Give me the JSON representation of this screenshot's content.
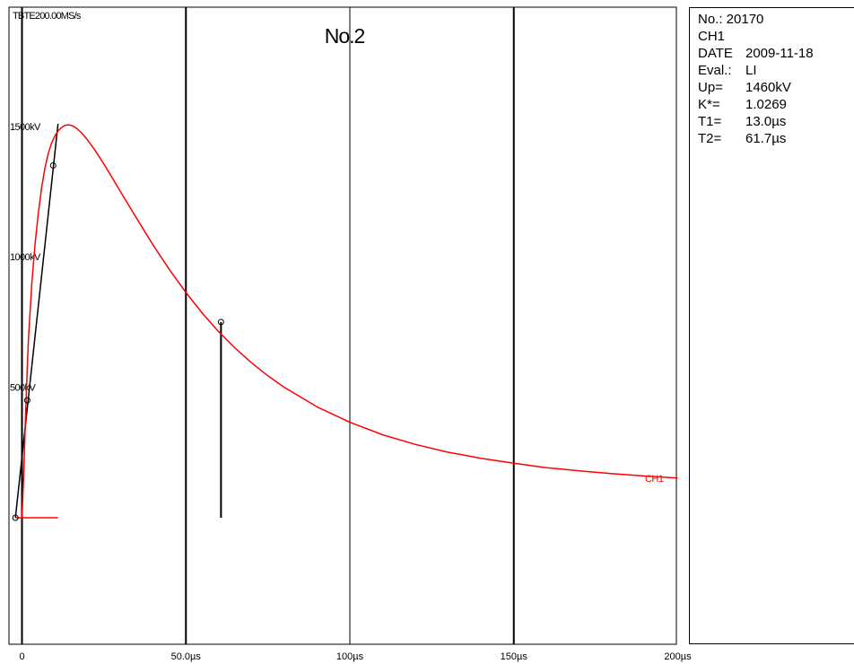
{
  "chart_data": {
    "type": "line",
    "title": "No.2",
    "header_label": "TBTE200.00MS/s",
    "xlabel": "",
    "ylabel": "",
    "x_unit": "µs",
    "y_unit": "kV",
    "xlim": [
      -2,
      200
    ],
    "ylim": [
      -500,
      1950
    ],
    "x_ticks": [
      {
        "value": 0,
        "label": "0"
      },
      {
        "value": 50,
        "label": "50.0µs"
      },
      {
        "value": 100,
        "label": "100µs"
      },
      {
        "value": 150,
        "label": "150µs"
      },
      {
        "value": 200,
        "label": "200µs"
      }
    ],
    "y_ticks": [
      {
        "value": 500,
        "label": "500kV"
      },
      {
        "value": 1000,
        "label": "1000kV"
      },
      {
        "value": 1500,
        "label": "1500kV"
      }
    ],
    "series": [
      {
        "name": "CH1",
        "color": "#ff0000",
        "x": [
          0,
          0.5,
          1,
          1.5,
          2,
          3,
          4,
          5,
          6,
          7,
          8,
          9,
          10,
          11,
          12,
          13,
          14,
          15,
          16,
          17,
          18,
          19,
          20,
          22,
          24,
          26,
          28,
          30,
          35,
          40,
          45,
          50,
          55,
          60,
          65,
          70,
          75,
          80,
          90,
          100,
          110,
          120,
          130,
          140,
          150,
          160,
          170,
          180,
          190,
          200
        ],
        "y": [
          0,
          150,
          360,
          540,
          690,
          900,
          1050,
          1170,
          1265,
          1340,
          1395,
          1435,
          1462,
          1482,
          1495,
          1503,
          1506,
          1504,
          1498,
          1489,
          1477,
          1463,
          1448,
          1413,
          1375,
          1335,
          1293,
          1251,
          1147,
          1045,
          950,
          863,
          784,
          713,
          650,
          594,
          544,
          500,
          425,
          366,
          318,
          281,
          251,
          228,
          209,
          192,
          180,
          169,
          160,
          152
        ]
      }
    ],
    "markers": [
      {
        "x": -2,
        "y": 0
      },
      {
        "x": 1.6,
        "y": 450
      },
      {
        "x": 9.5,
        "y": 1350
      },
      {
        "x": 60.7,
        "y": 750
      }
    ],
    "front_line": {
      "x": [
        -2,
        11
      ],
      "y": [
        0,
        1510
      ]
    },
    "baseline": {
      "x": [
        -2,
        11
      ],
      "y": [
        0,
        0
      ]
    },
    "t2_marker_line": {
      "x": [
        60.7,
        60.7
      ],
      "y": [
        0,
        750
      ]
    },
    "grid_x": [
      0,
      50,
      100,
      150
    ],
    "legend": "CH1 label near right end of curve"
  },
  "info": {
    "number": "No.: 20170",
    "channel": "CH1",
    "rows": [
      {
        "k": "DATE",
        "v": "2009-11-18"
      },
      {
        "k": "Eval.:",
        "v": "LI"
      },
      {
        "k": "Up=",
        "v": "1460kV"
      },
      {
        "k": "K*=",
        "v": "1.0269"
      },
      {
        "k": "T1=",
        "v": "13.0µs"
      },
      {
        "k": "T2=",
        "v": "61.7µs"
      }
    ]
  }
}
